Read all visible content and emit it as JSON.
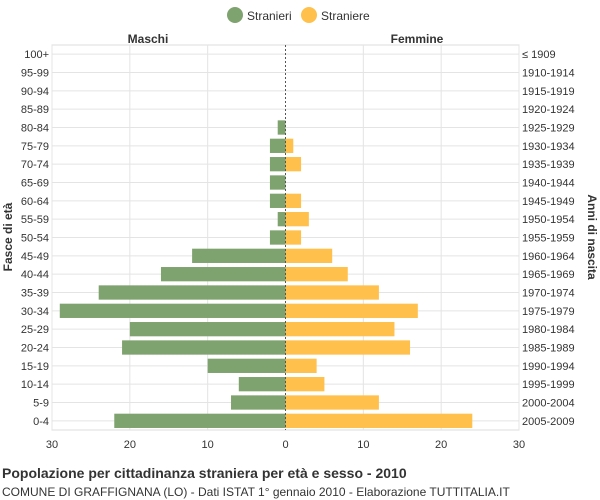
{
  "chart_data": {
    "type": "bar",
    "orientation": "horizontal",
    "left_header": "Maschi",
    "right_header": "Femmine",
    "ylabel_left": "Fasce di età",
    "ylabel_right": "Anni di nascita",
    "age_groups": [
      "100+",
      "95-99",
      "90-94",
      "85-89",
      "80-84",
      "75-79",
      "70-74",
      "65-69",
      "60-64",
      "55-59",
      "50-54",
      "45-49",
      "40-44",
      "35-39",
      "30-34",
      "25-29",
      "20-24",
      "15-19",
      "10-14",
      "5-9",
      "0-4"
    ],
    "birth_years": [
      "≤ 1909",
      "1910-1914",
      "1915-1919",
      "1920-1924",
      "1925-1929",
      "1930-1934",
      "1935-1939",
      "1940-1944",
      "1945-1949",
      "1950-1954",
      "1955-1959",
      "1960-1964",
      "1965-1969",
      "1970-1974",
      "1975-1979",
      "1980-1984",
      "1985-1989",
      "1990-1994",
      "1995-1999",
      "2000-2004",
      "2005-2009"
    ],
    "series": [
      {
        "name": "Stranieri",
        "color": "#7fa36f",
        "side": "left",
        "values": [
          0,
          0,
          0,
          0,
          1,
          2,
          2,
          2,
          2,
          1,
          2,
          12,
          16,
          24,
          29,
          20,
          21,
          10,
          6,
          7,
          22
        ]
      },
      {
        "name": "Straniere",
        "color": "#ffc04c",
        "side": "right",
        "values": [
          0,
          0,
          0,
          0,
          0,
          1,
          2,
          0,
          2,
          3,
          2,
          6,
          8,
          12,
          17,
          14,
          16,
          4,
          5,
          12,
          24
        ]
      }
    ],
    "x_ticks_left": [
      "30",
      "20",
      "10",
      "0"
    ],
    "x_ticks_right": [
      "10",
      "20",
      "30"
    ],
    "xlim": [
      -30,
      30
    ],
    "grid": true,
    "legend_position": "top"
  },
  "caption": {
    "title": "Popolazione per cittadinanza straniera per età e sesso - 2010",
    "subtitle": "COMUNE DI GRAFFIGNANA (LO) - Dati ISTAT 1° gennaio 2010 - Elaborazione TUTTITALIA.IT"
  }
}
